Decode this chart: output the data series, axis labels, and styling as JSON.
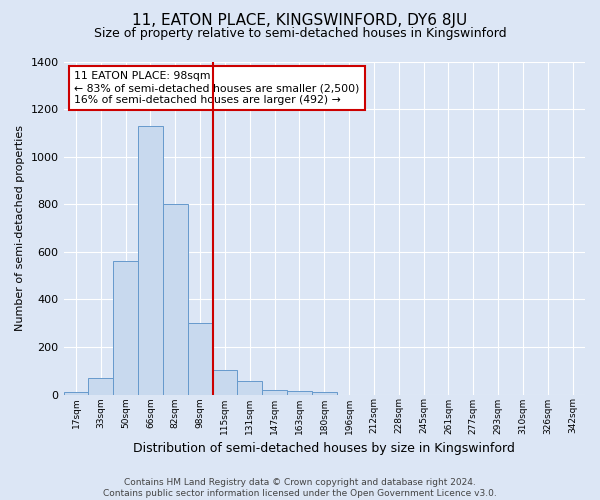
{
  "title": "11, EATON PLACE, KINGSWINFORD, DY6 8JU",
  "subtitle": "Size of property relative to semi-detached houses in Kingswinford",
  "xlabel": "Distribution of semi-detached houses by size in Kingswinford",
  "ylabel": "Number of semi-detached properties",
  "footer_line1": "Contains HM Land Registry data © Crown copyright and database right 2024.",
  "footer_line2": "Contains public sector information licensed under the Open Government Licence v3.0.",
  "annotation_title": "11 EATON PLACE: 98sqm",
  "annotation_line1": "← 83% of semi-detached houses are smaller (2,500)",
  "annotation_line2": "16% of semi-detached houses are larger (492) →",
  "bar_categories": [
    "17sqm",
    "33sqm",
    "50sqm",
    "66sqm",
    "82sqm",
    "98sqm",
    "115sqm",
    "131sqm",
    "147sqm",
    "163sqm",
    "180sqm",
    "196sqm",
    "212sqm",
    "228sqm",
    "245sqm",
    "261sqm",
    "277sqm",
    "293sqm",
    "310sqm",
    "326sqm",
    "342sqm"
  ],
  "bar_values": [
    10,
    70,
    560,
    1130,
    800,
    300,
    105,
    55,
    20,
    15,
    10,
    0,
    0,
    0,
    0,
    0,
    0,
    0,
    0,
    0,
    0
  ],
  "bar_color": "#c8d9ee",
  "bar_edge_color": "#6699cc",
  "vline_color": "#cc0000",
  "vline_position": 5.5,
  "ylim": [
    0,
    1400
  ],
  "yticks": [
    0,
    200,
    400,
    600,
    800,
    1000,
    1200,
    1400
  ],
  "background_color": "#dce6f5",
  "grid_color": "#ffffff",
  "annotation_box_color": "#ffffff",
  "annotation_box_edge": "#cc0000",
  "title_fontsize": 11,
  "subtitle_fontsize": 9,
  "xlabel_fontsize": 9,
  "ylabel_fontsize": 8,
  "footer_fontsize": 6.5
}
